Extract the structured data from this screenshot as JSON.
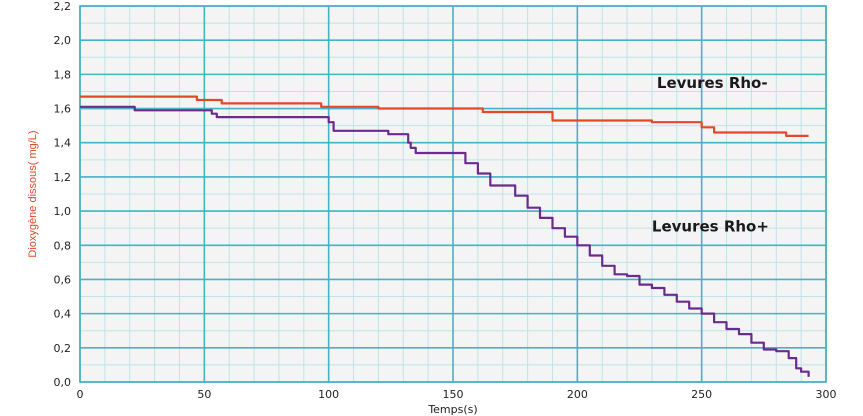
{
  "chart_data": {
    "type": "line",
    "title": "",
    "xlabel": "Temps(s)",
    "ylabel": "Dioxygène dissous( mg/L)",
    "xlim": [
      0,
      300
    ],
    "ylim": [
      0,
      2.2
    ],
    "x_ticks": [
      "0",
      "50",
      "100",
      "150",
      "200",
      "250",
      "300"
    ],
    "y_ticks": [
      "0,0",
      "0,2",
      "0,4",
      "0,6",
      "0,8",
      "1,0",
      "1,2",
      "1,4",
      "1,6",
      "1,8",
      "2,0",
      "2,2"
    ],
    "grid": true,
    "series": [
      {
        "name": "Levures Rho-",
        "color": "#e0492a",
        "x": [
          0,
          45,
          47,
          55,
          57,
          95,
          97,
          120,
          160,
          162,
          188,
          190,
          228,
          230,
          248,
          250,
          253,
          255,
          282,
          284,
          293
        ],
        "y": [
          1.67,
          1.67,
          1.65,
          1.65,
          1.63,
          1.63,
          1.61,
          1.6,
          1.6,
          1.58,
          1.58,
          1.53,
          1.53,
          1.52,
          1.52,
          1.49,
          1.49,
          1.46,
          1.46,
          1.44,
          1.44
        ]
      },
      {
        "name": "Levures Rho+",
        "color": "#6a2a8e",
        "x": [
          0,
          20,
          22,
          50,
          53,
          55,
          98,
          100,
          102,
          122,
          124,
          130,
          132,
          133,
          135,
          150,
          155,
          160,
          165,
          175,
          180,
          185,
          190,
          195,
          200,
          205,
          210,
          215,
          220,
          225,
          230,
          235,
          240,
          245,
          250,
          255,
          260,
          265,
          270,
          275,
          280,
          285,
          288,
          290,
          293
        ],
        "y": [
          1.61,
          1.61,
          1.59,
          1.59,
          1.57,
          1.55,
          1.55,
          1.52,
          1.47,
          1.47,
          1.45,
          1.45,
          1.4,
          1.37,
          1.34,
          1.34,
          1.28,
          1.22,
          1.15,
          1.09,
          1.02,
          0.96,
          0.9,
          0.85,
          0.8,
          0.74,
          0.68,
          0.63,
          0.62,
          0.57,
          0.55,
          0.51,
          0.47,
          0.43,
          0.4,
          0.35,
          0.31,
          0.28,
          0.23,
          0.19,
          0.18,
          0.14,
          0.08,
          0.06,
          0.03
        ]
      }
    ],
    "annotations": [
      {
        "text": "Levures Rho-",
        "x": 232,
        "y": 1.72
      },
      {
        "text": "Levures Rho+",
        "x": 230,
        "y": 0.88
      }
    ],
    "colors": {
      "major_grid": "#46b2c2",
      "minor_grid": "#bfe3e8",
      "ylabel": "#e0492a",
      "background": "#f4f4f4"
    }
  }
}
